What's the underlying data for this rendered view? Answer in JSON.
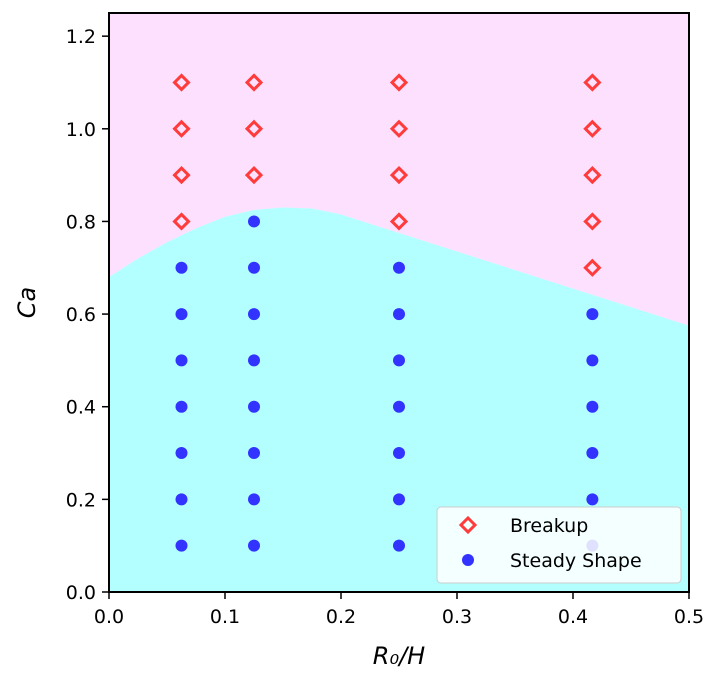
{
  "chart_data": {
    "type": "scatter",
    "xlabel": "R₀/H",
    "ylabel": "Ca",
    "xlim": [
      0.0,
      0.5
    ],
    "ylim": [
      0.0,
      1.25
    ],
    "x_ticks": [
      "0.0",
      "0.1",
      "0.2",
      "0.3",
      "0.4",
      "0.5"
    ],
    "y_ticks": [
      "0.0",
      "0.2",
      "0.4",
      "0.6",
      "0.8",
      "1.0",
      "1.2"
    ],
    "grid": false,
    "legend_position": "bottom-right",
    "boundary": {
      "x": [
        0.0,
        0.025,
        0.05,
        0.075,
        0.1,
        0.125,
        0.15,
        0.175,
        0.2,
        0.25,
        0.3,
        0.35,
        0.4,
        0.45,
        0.5
      ],
      "y": [
        0.68,
        0.72,
        0.755,
        0.785,
        0.81,
        0.825,
        0.83,
        0.828,
        0.815,
        0.775,
        0.735,
        0.695,
        0.655,
        0.615,
        0.575
      ],
      "upper_color": "#fde0fd",
      "lower_color": "#b3ffff"
    },
    "series": [
      {
        "name": "Breakup",
        "marker": "diamond-open",
        "color": "#ff3b3b",
        "points": [
          [
            0.0625,
            0.8
          ],
          [
            0.0625,
            0.9
          ],
          [
            0.0625,
            1.0
          ],
          [
            0.0625,
            1.1
          ],
          [
            0.125,
            0.9
          ],
          [
            0.125,
            1.0
          ],
          [
            0.125,
            1.1
          ],
          [
            0.25,
            0.8
          ],
          [
            0.25,
            0.9
          ],
          [
            0.25,
            1.0
          ],
          [
            0.25,
            1.1
          ],
          [
            0.4167,
            0.7
          ],
          [
            0.4167,
            0.8
          ],
          [
            0.4167,
            0.9
          ],
          [
            0.4167,
            1.0
          ],
          [
            0.4167,
            1.1
          ]
        ]
      },
      {
        "name": "Steady Shape",
        "marker": "circle",
        "color": "#3333ff",
        "points": [
          [
            0.0625,
            0.1
          ],
          [
            0.0625,
            0.2
          ],
          [
            0.0625,
            0.3
          ],
          [
            0.0625,
            0.4
          ],
          [
            0.0625,
            0.5
          ],
          [
            0.0625,
            0.6
          ],
          [
            0.0625,
            0.7
          ],
          [
            0.125,
            0.1
          ],
          [
            0.125,
            0.2
          ],
          [
            0.125,
            0.3
          ],
          [
            0.125,
            0.4
          ],
          [
            0.125,
            0.5
          ],
          [
            0.125,
            0.6
          ],
          [
            0.125,
            0.7
          ],
          [
            0.125,
            0.8
          ],
          [
            0.25,
            0.1
          ],
          [
            0.25,
            0.2
          ],
          [
            0.25,
            0.3
          ],
          [
            0.25,
            0.4
          ],
          [
            0.25,
            0.5
          ],
          [
            0.25,
            0.6
          ],
          [
            0.25,
            0.7
          ],
          [
            0.4167,
            0.1
          ],
          [
            0.4167,
            0.2
          ],
          [
            0.4167,
            0.3
          ],
          [
            0.4167,
            0.4
          ],
          [
            0.4167,
            0.5
          ],
          [
            0.4167,
            0.6
          ]
        ]
      }
    ]
  }
}
